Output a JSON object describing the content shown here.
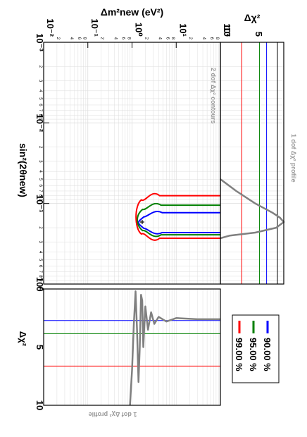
{
  "colors": {
    "c90": "#0000ff",
    "c95": "#008000",
    "c99": "#ff0000",
    "profile": "#808080",
    "frame": "#000000",
    "grid": "#dddddd",
    "annotation": "#999999"
  },
  "chart_data": [
    {
      "id": "contour",
      "type": "line",
      "title": "2 dof Δχ² contours",
      "xlabel": "sin²(2θnew)",
      "ylabel": "Δm²new (eV²)",
      "x_scale": "log",
      "y_scale": "log",
      "xlim": [
        0.001,
        1
      ],
      "ylim": [
        0.01,
        100
      ],
      "x_tick_labels": [
        "10⁻³",
        "10⁻²",
        "10⁻¹",
        "10⁰"
      ],
      "y_tick_labels": [
        "10⁻²",
        "10⁻¹",
        "10⁰",
        "10¹",
        "10²"
      ],
      "grid": true,
      "series": [
        {
          "name": "90.00 %",
          "color": "#0000ff",
          "x_left": 0.13,
          "x_right": 0.23,
          "y_from": 1.6,
          "y_to": 100
        },
        {
          "name": "95.00 %",
          "color": "#008000",
          "x_left": 0.105,
          "x_right": 0.245,
          "y_from": 1.5,
          "y_to": 100
        },
        {
          "name": "99.00 %",
          "color": "#ff0000",
          "x_left": 0.08,
          "x_right": 0.27,
          "y_from": 1.4,
          "y_to": 100
        }
      ]
    },
    {
      "id": "profile_x",
      "type": "line",
      "title": "1 dof Δχ² profile",
      "xlabel": "",
      "ylabel": "Δχ²",
      "x_scale": "log",
      "xlim": [
        0.001,
        1
      ],
      "ylim": [
        0,
        10
      ],
      "y_tick_labels": [
        "5",
        "10"
      ],
      "levels": [
        {
          "name": "90.00 %",
          "value": 2.71,
          "color": "#0000ff"
        },
        {
          "name": "95.00 %",
          "value": 3.84,
          "color": "#008000"
        },
        {
          "name": "99.00 %",
          "value": 6.63,
          "color": "#ff0000"
        }
      ],
      "curve": {
        "color": "#808080",
        "x": [
          0.05,
          0.07,
          0.1,
          0.13,
          0.15,
          0.17,
          0.2,
          0.23,
          0.25,
          0.27
        ],
        "y": [
          10,
          7.5,
          4.5,
          1.8,
          0.6,
          0.0,
          1.2,
          4.5,
          8.5,
          10
        ]
      }
    },
    {
      "id": "profile_y",
      "type": "line",
      "title": "1 dof Δχ² profile",
      "xlabel": "Δχ²",
      "ylabel": "",
      "y_scale": "log",
      "xlim": [
        0,
        10
      ],
      "ylim": [
        0.01,
        100
      ],
      "x_tick_labels": [
        "0",
        "5",
        "10"
      ],
      "levels": [
        {
          "name": "90.00 %",
          "value": 2.71,
          "color": "#0000ff"
        },
        {
          "name": "95.00 %",
          "value": 3.84,
          "color": "#008000"
        },
        {
          "name": "99.00 %",
          "value": 6.63,
          "color": "#ff0000"
        }
      ],
      "curve": {
        "color": "#808080",
        "y": [
          0.9,
          1.0,
          1.1,
          1.2,
          1.3,
          1.4,
          1.5,
          1.6,
          1.7,
          1.8,
          2.0,
          2.3,
          2.7,
          3.2,
          4.0,
          6.0,
          10,
          30,
          100
        ],
        "x": [
          10,
          7.0,
          3.0,
          0.2,
          3.5,
          8.0,
          5.0,
          0.5,
          1.0,
          5.0,
          1.5,
          3.5,
          2.0,
          3.0,
          2.4,
          2.8,
          2.5,
          2.6,
          2.6
        ]
      }
    }
  ],
  "legend": {
    "entries": [
      {
        "label": "90.00 %",
        "color": "#0000ff"
      },
      {
        "label": "95.00 %",
        "color": "#008000"
      },
      {
        "label": "99.00 %",
        "color": "#ff0000"
      }
    ]
  },
  "labels": {
    "contour_title": "2 dof Δχ² contours",
    "profile_title": "1 dof Δχ² profile",
    "xaxis": "sin²(2θnew)",
    "yaxis": "Δm²new (eV²)",
    "dchi2": "Δχ²"
  }
}
